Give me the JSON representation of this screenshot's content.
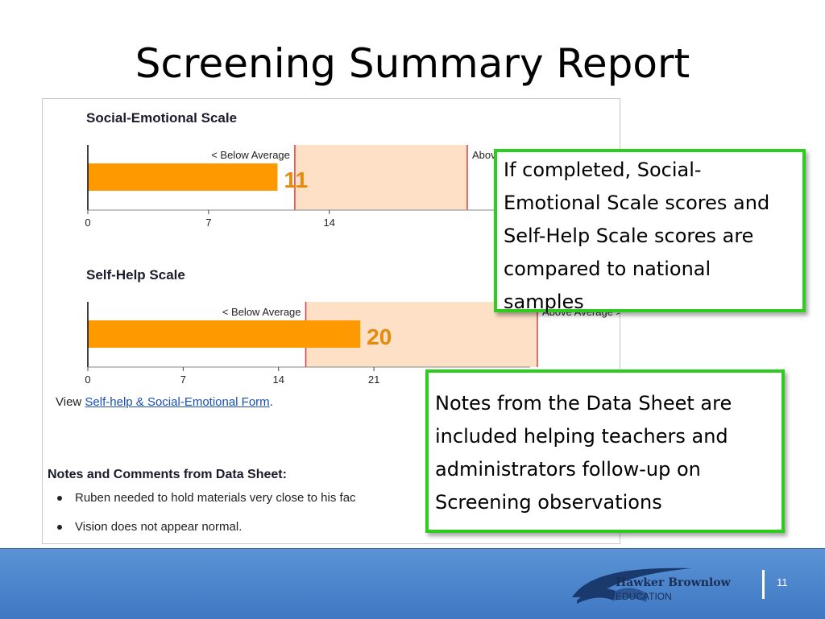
{
  "slide": {
    "title": "Screening Summary Report",
    "page_number": "11"
  },
  "report": {
    "social_emotional": {
      "title": "Social-Emotional Scale",
      "below_label": "< Below Average",
      "above_label": "Abov",
      "score": 11,
      "score_label": "11",
      "ticks": [
        "0",
        "7",
        "14"
      ],
      "tick_values": [
        0,
        7,
        14
      ],
      "band": [
        12,
        22
      ],
      "axis_max": 22
    },
    "self_help": {
      "title": "Self-Help Scale",
      "below_label": "< Below Average",
      "above_label": "Above Average >",
      "score": 20,
      "score_label": "20",
      "ticks": [
        "0",
        "7",
        "14",
        "21"
      ],
      "tick_values": [
        0,
        7,
        14,
        21
      ],
      "band": [
        16,
        33
      ],
      "axis_max": 33
    },
    "view_prefix": "View ",
    "view_link": "Self-help & Social-Emotional Form",
    "view_suffix": ".",
    "notes_title": "Notes and Comments from Data Sheet:",
    "notes": [
      "Ruben needed to hold materials very close to his fac",
      "Vision does not appear normal."
    ]
  },
  "callouts": {
    "scales": "If completed, Social-Emotional Scale scores and Self-Help Scale scores are compared to national samples",
    "notes": "Notes from the Data Sheet are included helping teachers and administrators follow-up on Screening observations"
  },
  "logo": {
    "name": "Hawker Brownlow",
    "sub": "EDUCATION"
  },
  "colors": {
    "bar": "#ff9900",
    "band": "#fde0c5",
    "band_line": "#e23a3a",
    "score_text": "#e8890c",
    "callout_border": "#2ecc1f",
    "footer": "#4a86cc"
  },
  "icons": {
    "bullet": "bullet-icon",
    "logo_mark": "book-swoosh-icon"
  }
}
